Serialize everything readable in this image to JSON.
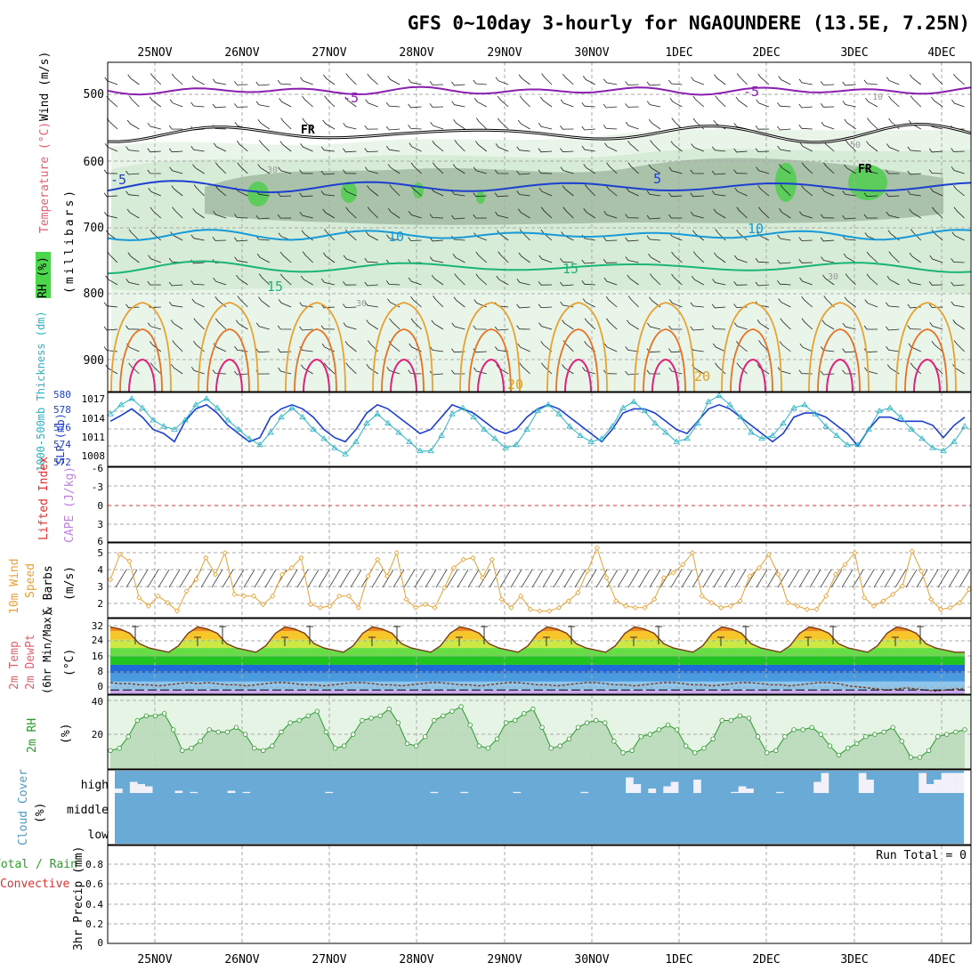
{
  "title": "GFS 0~10day 3-hourly for NGAOUNDERE (13.5E, 7.25N)",
  "dates": [
    "25NOV",
    "26NOV",
    "27NOV",
    "28NOV",
    "29NOV",
    "30NOV",
    "1DEC",
    "2DEC",
    "3DEC",
    "4DEC"
  ],
  "panels": {
    "upper_air": {
      "ylabel": "(millibars)",
      "legend": [
        "RH (%)",
        "Temperature (°C)",
        "Wind (m/s)"
      ],
      "pressure_ticks": [
        "500",
        "600",
        "700",
        "800",
        "900"
      ],
      "contour_labels": [
        "-5",
        "-5",
        "-5",
        "5",
        "10",
        "10",
        "15",
        "15",
        "20",
        "20",
        "FR",
        "FR",
        "10",
        "30",
        "50",
        "30",
        "30"
      ]
    },
    "thickness_slp": {
      "label_left": "1000-500mb Thickness (dm)",
      "label_right": "SLP (mb)",
      "left_ticks": [
        "580",
        "578",
        "576",
        "574",
        "572"
      ],
      "right_ticks": [
        "1017",
        "1014",
        "1011",
        "1008"
      ]
    },
    "cape_li": {
      "label_li": "Lifted Index",
      "label_cape": "CAPE (J/kg)",
      "ticks": [
        "-6",
        "-3",
        "0",
        "3",
        "6"
      ]
    },
    "wind10m": {
      "label1": "10m Wind",
      "label2": "Speed",
      "label3": "& Barbs",
      "units": "(m/s)",
      "ticks": [
        "5",
        "4",
        "3",
        "2"
      ]
    },
    "temp2m": {
      "label1": "2m Temp",
      "label2": "2m DewPt",
      "label3": "(6hr Min/Max)",
      "units": "(°C)",
      "ticks": [
        "32",
        "24",
        "16",
        "8",
        "0"
      ]
    },
    "rh2m": {
      "label": "2m RH",
      "units": "(%)",
      "ticks": [
        "40",
        "20"
      ]
    },
    "cloud": {
      "label": "Cloud Cover",
      "units": "(%)",
      "levels": [
        "high",
        "middle",
        "low"
      ]
    },
    "precip": {
      "label1": "Total / Rain",
      "label2": "Convective",
      "label3": "3hr Precip (mm)",
      "ticks": [
        "0.8",
        "0.6",
        "0.4",
        "0.2",
        "0"
      ],
      "run_total": "Run Total = 0"
    }
  },
  "colors": {
    "thickness": "#1c3fd0",
    "slp": "#26b4c4",
    "wind_speed": "#e8a030",
    "rh2m": "#2a9a2a",
    "cloud": "#6aaad6"
  },
  "chart_data": [
    {
      "type": "line",
      "title": "1000-500mb Thickness (dm) / SLP (mb)",
      "x_unit": "hours since 25NOV 00Z (3-hourly)",
      "series": [
        {
          "name": "1000-500mb Thickness (dm)",
          "axis": "left",
          "ylim": [
            571,
            580
          ],
          "values": [
            576.5,
            577.2,
            578.0,
            577.0,
            575.5,
            575.0,
            574.0,
            576.5,
            578.0,
            578.5,
            577.5,
            576.0,
            575.0,
            574.0,
            574.5,
            577.0,
            578.0,
            578.5,
            578.0,
            577.0,
            575.5,
            574.5,
            574.0,
            575.5,
            577.5,
            578.5,
            578.0,
            577.0,
            576.0,
            575.0,
            575.5,
            577.0,
            578.5,
            578.0,
            577.5,
            576.5,
            575.5,
            575.0,
            575.5,
            577.0,
            578.0,
            578.5,
            578.0,
            577.0,
            576.0,
            575.0,
            574.0,
            575.5,
            577.5,
            578.0,
            578.0,
            577.5,
            576.5,
            575.5,
            575.0,
            576.5,
            578.0,
            578.5,
            578.0,
            577.0,
            576.0,
            575.0,
            574.0,
            575.0,
            577.0,
            577.5,
            577.5,
            577.0,
            576.0,
            575.0,
            573.5,
            575.5,
            577.0,
            577.0,
            576.5,
            576.5,
            576.5,
            576.0,
            574.5,
            576.0,
            577.0
          ]
        },
        {
          "name": "SLP (mb)",
          "axis": "right",
          "ylim": [
            1005.5,
            1017.5
          ],
          "values": [
            1014.0,
            1015.5,
            1016.5,
            1015.0,
            1013.0,
            1012.0,
            1011.5,
            1013.0,
            1015.5,
            1016.5,
            1015.0,
            1013.0,
            1011.5,
            1010.0,
            1009.0,
            1011.0,
            1013.5,
            1015.0,
            1013.5,
            1011.5,
            1010.0,
            1008.5,
            1007.5,
            1009.5,
            1012.5,
            1014.0,
            1012.5,
            1011.0,
            1009.5,
            1008.0,
            1008.0,
            1010.5,
            1014.0,
            1015.0,
            1013.5,
            1011.5,
            1010.0,
            1008.5,
            1009.0,
            1011.5,
            1014.5,
            1015.5,
            1014.0,
            1012.0,
            1010.5,
            1009.5,
            1010.0,
            1012.0,
            1015.0,
            1016.0,
            1014.5,
            1012.5,
            1011.0,
            1009.5,
            1010.0,
            1012.5,
            1016.0,
            1017.0,
            1015.5,
            1013.5,
            1011.0,
            1010.0,
            1010.5,
            1012.5,
            1015.0,
            1015.5,
            1014.0,
            1012.0,
            1010.5,
            1009.0,
            1009.0,
            1011.5,
            1014.5,
            1015.0,
            1013.5,
            1011.5,
            1010.0,
            1008.5,
            1008.0,
            1009.5,
            1012.0
          ]
        }
      ]
    },
    {
      "type": "line",
      "title": "10m Wind Speed (m/s)",
      "ylim": [
        1,
        5.5
      ],
      "series": [
        {
          "name": "10m Wind Speed",
          "values": [
            3.3,
            4.8,
            4.4,
            2.2,
            1.7,
            2.3,
            1.9,
            1.4,
            2.6,
            3.3,
            4.6,
            3.6,
            4.9,
            2.4,
            2.3,
            2.3,
            1.8,
            2.3,
            3.6,
            4.0,
            4.6,
            1.8,
            1.6,
            1.7,
            2.3,
            2.3,
            1.6,
            3.5,
            4.5,
            3.5,
            4.9,
            2.1,
            1.6,
            1.8,
            1.6,
            2.8,
            4.0,
            4.5,
            4.6,
            3.4,
            4.5,
            2.1,
            1.6,
            2.3,
            1.5,
            1.4,
            1.4,
            1.6,
            2.0,
            2.5,
            3.8,
            5.2,
            3.4,
            2.0,
            1.7,
            1.6,
            1.6,
            2.1,
            3.4,
            3.7,
            4.2,
            4.9,
            2.3,
            1.9,
            1.6,
            1.7,
            2.0,
            3.5,
            4.0,
            4.8,
            3.6,
            1.9,
            1.7,
            1.5,
            1.5,
            2.3,
            3.6,
            4.2,
            4.9,
            2.2,
            1.7,
            2.0,
            2.4,
            2.9,
            5.0,
            3.8,
            2.1,
            1.5,
            1.6,
            1.9,
            2.7
          ]
        }
      ]
    },
    {
      "type": "area",
      "title": "2m Temp / 2m DewPt (°C)",
      "ylim": [
        -2,
        34
      ],
      "series": [
        {
          "name": "2m Temp",
          "values": [
            30,
            29,
            27,
            22,
            20,
            19,
            18,
            21,
            27,
            30,
            29,
            27,
            22,
            20,
            19,
            18,
            21,
            27,
            30,
            29,
            27,
            22,
            20,
            19,
            18,
            21,
            27,
            30,
            29,
            27,
            22,
            20,
            19,
            18,
            21,
            27,
            30,
            29,
            27,
            22,
            20,
            19,
            18,
            21,
            27,
            30,
            29,
            27,
            22,
            20,
            19,
            18,
            21,
            27,
            30,
            29,
            27,
            22,
            20,
            19,
            18,
            21,
            27,
            30,
            29,
            27,
            22,
            20,
            19,
            18,
            21,
            27,
            30,
            29,
            27,
            22,
            20,
            19,
            18,
            21,
            27,
            30,
            29,
            27,
            22,
            20,
            19,
            18,
            18
          ]
        },
        {
          "name": "2m DewPt",
          "values": [
            3.5,
            3.0,
            3.0,
            2.5,
            2.5,
            2.0,
            2.5,
            3.0,
            3.5,
            3.0,
            3.5,
            3.0,
            2.5,
            2.5,
            2.0,
            2.5,
            3.0,
            3.5,
            3.5,
            3.0,
            2.5,
            2.5,
            2.0,
            2.5,
            3.0,
            3.5,
            3.5,
            3.0,
            2.5,
            2.5,
            2.0,
            2.5,
            3.0,
            3.5,
            3.5,
            3.0,
            2.5,
            2.5,
            2.0,
            2.5,
            3.0,
            3.5,
            3.5,
            3.0,
            2.5,
            2.5,
            2.0,
            2.5,
            3.0,
            3.5,
            3.5,
            3.0,
            2.5,
            2.5,
            2.0,
            2.5,
            3.0,
            3.5,
            3.5,
            3.0,
            2.5,
            2.5,
            2.0,
            2.5,
            3.0,
            3.5,
            3.5,
            3.0,
            2.5,
            2.5,
            2.0,
            2.5,
            3.0,
            3.5,
            3.5,
            3.0,
            2.0,
            1.5,
            1.0,
            0.5,
            0.0,
            0.5,
            1.0,
            0.5,
            0.0,
            -0.5,
            0.0,
            0.5,
            0.5
          ]
        }
      ]
    },
    {
      "type": "area",
      "title": "2m RH (%)",
      "ylim": [
        10,
        42
      ],
      "series": [
        {
          "name": "2m RH",
          "values": [
            18,
            19,
            24,
            31,
            33,
            33,
            34,
            27,
            18,
            19,
            22,
            27,
            26,
            26,
            28,
            25,
            19,
            18,
            20,
            26,
            30,
            31,
            33,
            35,
            26,
            19,
            20,
            25,
            31,
            32,
            33,
            36,
            30,
            21,
            20,
            24,
            31,
            33,
            35,
            37,
            29,
            20,
            19,
            23,
            30,
            31,
            34,
            36,
            28,
            19,
            20,
            23,
            28,
            30,
            31,
            30,
            22,
            17,
            18,
            24,
            25,
            27,
            29,
            27,
            20,
            17,
            19,
            23,
            31,
            31,
            33,
            32,
            24,
            17,
            18,
            24,
            27,
            27,
            28,
            25,
            20,
            16,
            19,
            21,
            24,
            25,
            26,
            28,
            22,
            15,
            15,
            18,
            24,
            25,
            26,
            27
          ]
        }
      ]
    },
    {
      "type": "bar",
      "title": "Cloud Cover (%) high",
      "values": [
        20,
        0,
        50,
        40,
        30,
        0,
        0,
        0,
        10,
        0,
        5,
        0,
        0,
        0,
        0,
        10,
        0,
        5,
        0,
        0,
        0,
        0,
        0,
        0,
        0,
        0,
        0,
        0,
        5,
        0,
        0,
        0,
        0,
        0,
        0,
        0,
        0,
        0,
        0,
        0,
        0,
        0,
        5,
        0,
        0,
        0,
        5,
        0,
        0,
        0,
        0,
        0,
        0,
        5,
        0,
        0,
        0,
        0,
        0,
        0,
        0,
        0,
        5,
        0,
        0,
        0,
        0,
        0,
        70,
        40,
        0,
        20,
        0,
        30,
        50,
        0,
        0,
        60,
        0,
        0,
        0,
        0,
        5,
        30,
        20,
        0,
        0,
        0,
        5,
        0,
        0,
        0,
        0,
        50,
        90,
        0,
        0,
        0,
        0,
        90,
        60,
        0,
        0,
        0,
        0,
        0,
        0,
        90,
        40,
        60,
        90,
        90,
        90
      ]
    },
    {
      "type": "bar",
      "title": "3hr Precip (mm)",
      "ylim": [
        0,
        0.9
      ],
      "values": [
        0
      ]
    }
  ]
}
